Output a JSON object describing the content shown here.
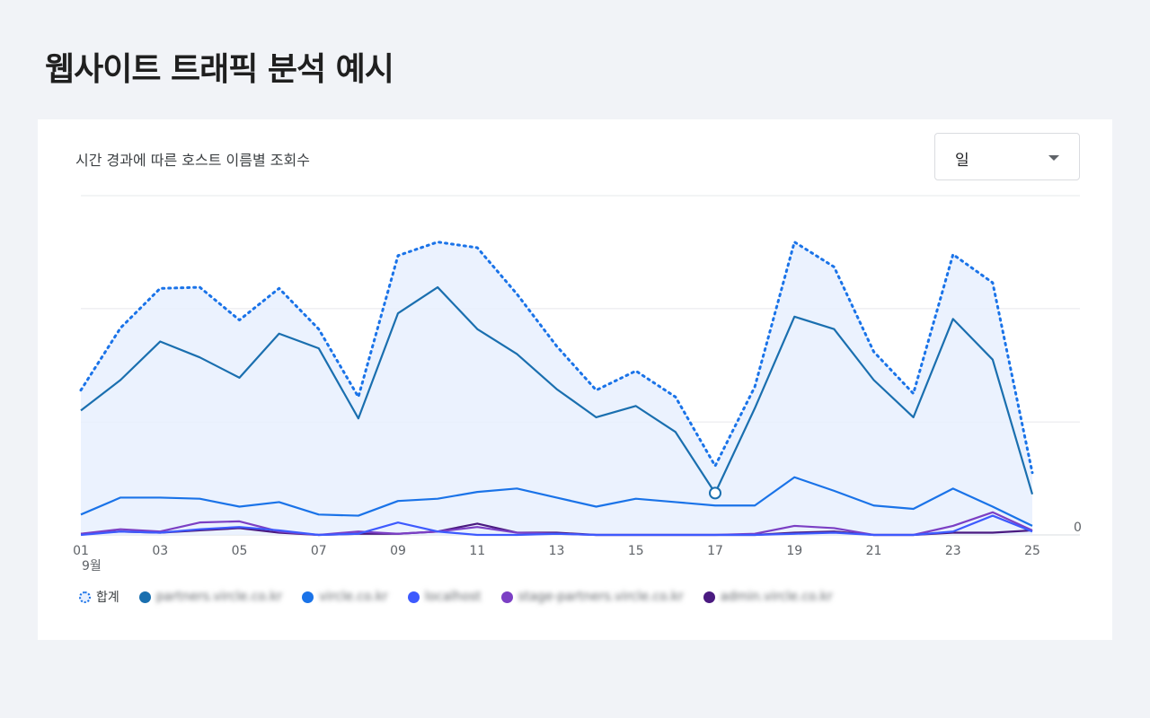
{
  "page": {
    "title": "웹사이트 트래픽 분석 예시"
  },
  "card": {
    "title": "시간 경과에 따른 호스트 이름별 조회수",
    "select": {
      "value": "일"
    }
  },
  "chart_data": {
    "type": "line",
    "title": "시간 경과에 따른 호스트 이름별 조회수",
    "x": [
      "01",
      "02",
      "03",
      "04",
      "05",
      "06",
      "07",
      "08",
      "09",
      "10",
      "11",
      "12",
      "13",
      "14",
      "15",
      "16",
      "17",
      "18",
      "19",
      "20",
      "21",
      "22",
      "23",
      "24",
      "25"
    ],
    "tick_labels": [
      "01",
      "03",
      "05",
      "07",
      "09",
      "11",
      "13",
      "15",
      "17",
      "19",
      "21",
      "23",
      "25"
    ],
    "month_label": "9월",
    "ylim": [
      0,
      300
    ],
    "y_tick_label": "0",
    "grid": true,
    "highlight": {
      "series": "partners.vircle.co.kr",
      "index": 16
    },
    "series": [
      {
        "name": "합계",
        "color": "#1a73e8",
        "style": "dotted-area",
        "values": [
          128,
          183,
          218,
          219,
          190,
          218,
          182,
          122,
          247,
          259,
          254,
          213,
          167,
          128,
          145,
          122,
          61,
          131,
          259,
          237,
          162,
          125,
          248,
          223,
          55
        ]
      },
      {
        "name": "partners.vircle.co.kr",
        "color": "#1a6faf",
        "style": "line",
        "values": [
          110,
          137,
          171,
          157,
          139,
          178,
          165,
          103,
          196,
          219,
          182,
          160,
          129,
          104,
          114,
          91,
          37,
          112,
          193,
          182,
          137,
          104,
          191,
          155,
          36
        ]
      },
      {
        "name": "vircle.co.kr",
        "color": "#1a73e8",
        "style": "line",
        "values": [
          18,
          33,
          33,
          32,
          25,
          29,
          18,
          17,
          30,
          32,
          38,
          41,
          33,
          25,
          32,
          29,
          26,
          26,
          51,
          39,
          26,
          23,
          41,
          25,
          8
        ]
      },
      {
        "name": "localhost",
        "color": "#3d5afe",
        "style": "line",
        "values": [
          0,
          3,
          2,
          5,
          7,
          4,
          0,
          1,
          11,
          3,
          0,
          0,
          1,
          0,
          0,
          0,
          0,
          0,
          1,
          2,
          0,
          0,
          3,
          17,
          3
        ]
      },
      {
        "name": "stage-partners.vircle.co.kr",
        "color": "#7b3fc4",
        "style": "line",
        "values": [
          1,
          5,
          3,
          11,
          12,
          3,
          0,
          3,
          1,
          3,
          7,
          2,
          1,
          0,
          0,
          0,
          0,
          1,
          8,
          6,
          0,
          0,
          8,
          20,
          4
        ]
      },
      {
        "name": "admin.vircle.co.kr",
        "color": "#4a1a80",
        "style": "line",
        "values": [
          1,
          3,
          2,
          4,
          6,
          2,
          0,
          1,
          1,
          3,
          10,
          2,
          2,
          0,
          0,
          0,
          0,
          0,
          2,
          3,
          0,
          0,
          2,
          2,
          4
        ]
      }
    ]
  },
  "legend": {
    "items": [
      {
        "label": "합계",
        "color": "#1a73e8",
        "dotted": true,
        "blurred": false
      },
      {
        "label": "partners.vircle.co.kr",
        "color": "#1a6faf",
        "dotted": false,
        "blurred": true
      },
      {
        "label": "vircle.co.kr",
        "color": "#1a73e8",
        "dotted": false,
        "blurred": true
      },
      {
        "label": "localhost",
        "color": "#3d5afe",
        "dotted": false,
        "blurred": true
      },
      {
        "label": "stage-partners.vircle.co.kr",
        "color": "#7b3fc4",
        "dotted": false,
        "blurred": true
      },
      {
        "label": "admin.vircle.co.kr",
        "color": "#4a1a80",
        "dotted": false,
        "blurred": true
      }
    ]
  }
}
